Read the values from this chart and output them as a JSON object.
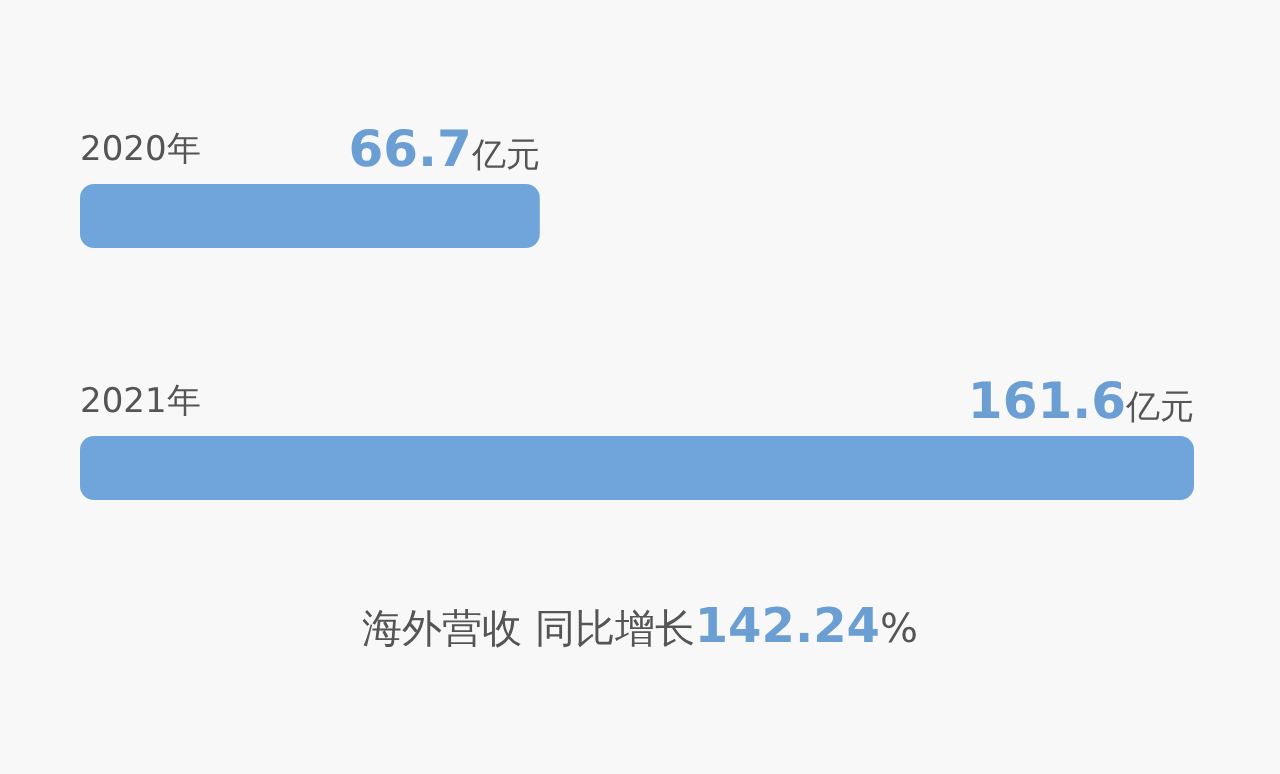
{
  "chart_data": {
    "type": "bar",
    "orientation": "horizontal",
    "categories": [
      "2020年",
      "2021年"
    ],
    "values": [
      66.7,
      161.6
    ],
    "value_labels": [
      "66.7亿元",
      "161.6亿元"
    ],
    "color": "#6fa5da",
    "annotations": [
      "海外营收 同比增长142.24%"
    ],
    "grid": false,
    "legend": false
  }
}
